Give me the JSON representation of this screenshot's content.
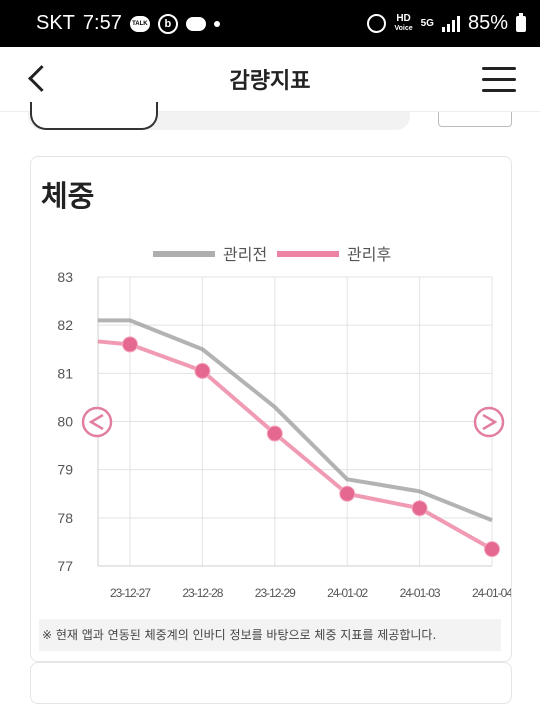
{
  "status_bar": {
    "carrier": "SKT",
    "time": "7:57",
    "talk_badge": "TALK",
    "b_badge": "b",
    "network_badge_top": "HD",
    "network_badge_bottom": "Voice",
    "network_type": "5G",
    "battery": "85%"
  },
  "header": {
    "title": "감량지표"
  },
  "card": {
    "title": "체중",
    "note": "※ 현재 앱과 연동된 체중계의 인바디 정보를 바탕으로 체중 지표를 제공합니다."
  },
  "colors": {
    "before": "#9a9a9a",
    "after": "#ea6f93",
    "after_marker": "#e4688f",
    "grid": "#e3e3e3",
    "nav_arrow": "#e27fa1"
  },
  "chart_data": {
    "type": "line",
    "categories": [
      "23-12-27",
      "23-12-28",
      "23-12-29",
      "24-01-02",
      "24-01-03",
      "24-01-04"
    ],
    "series": [
      {
        "name": "관리전",
        "values": [
          82.1,
          81.5,
          80.3,
          78.8,
          78.55,
          77.95
        ]
      },
      {
        "name": "관리후",
        "values": [
          81.6,
          81.05,
          79.75,
          78.5,
          78.2,
          77.35
        ]
      }
    ],
    "ylim": [
      77,
      83
    ],
    "yticks": [
      83,
      82,
      81,
      80,
      79,
      78,
      77
    ],
    "grid": true,
    "legend": "top-center"
  }
}
